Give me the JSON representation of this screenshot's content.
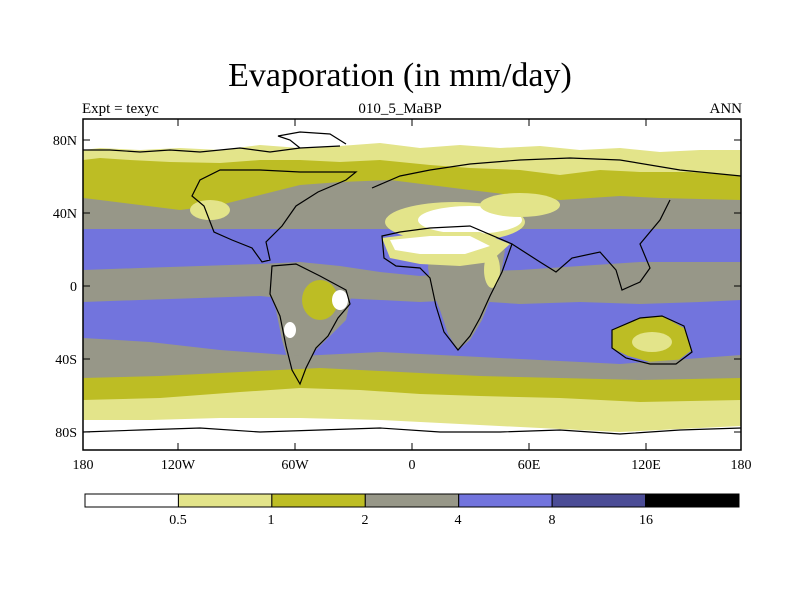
{
  "title": "Evaporation (in mm/day)",
  "subtitle_left": "Expt = texyc",
  "subtitle_center": "010_5_MaBP",
  "subtitle_right": "ANN",
  "map": {
    "lat_ticks": [
      "80N",
      "40N",
      "0",
      "40S",
      "80S"
    ],
    "lon_ticks": [
      "180",
      "120W",
      "60W",
      "0",
      "60E",
      "120E",
      "180"
    ]
  },
  "colorbar": {
    "colors": [
      "#ffffff",
      "#e3e48a",
      "#bdbd24",
      "#979788",
      "#7274dd",
      "#4b4c96",
      "#000000"
    ],
    "labels": [
      "0.5",
      "1",
      "2",
      "4",
      "8",
      "16"
    ]
  }
}
